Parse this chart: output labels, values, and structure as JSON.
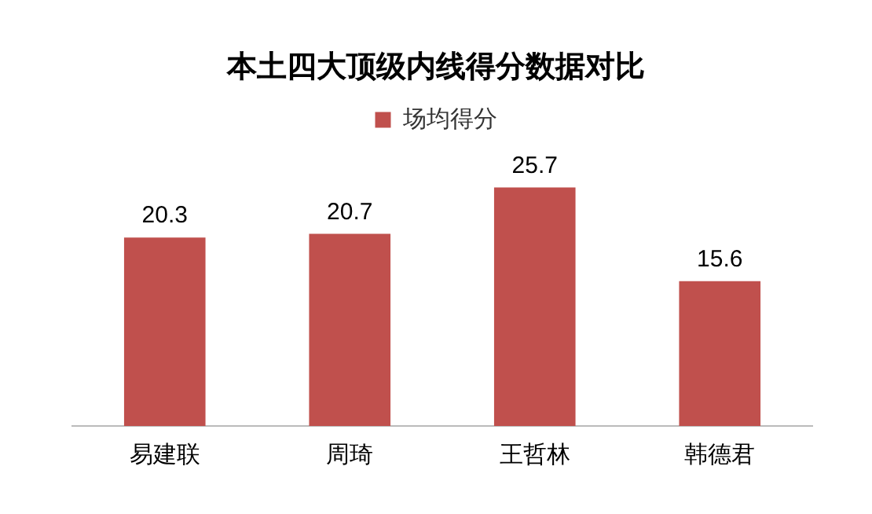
{
  "chart_data": {
    "type": "bar",
    "title": "本土四大顶级内线得分数据对比",
    "categories": [
      "易建联",
      "周琦",
      "王哲林",
      "韩德君"
    ],
    "series": [
      {
        "name": "场均得分",
        "color": "#c0504d",
        "values": [
          20.3,
          20.7,
          25.7,
          15.6
        ]
      }
    ],
    "tick_labels": "x",
    "data_labels": true,
    "legend": "top",
    "grid": false
  }
}
